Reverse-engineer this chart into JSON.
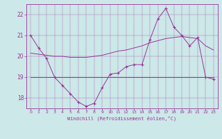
{
  "xlabel": "Windchill (Refroidissement éolien,°C)",
  "background_color": "#cce8e8",
  "line_color": "#993399",
  "ylim": [
    17.5,
    22.5
  ],
  "xlim": [
    -0.5,
    23.5
  ],
  "yticks": [
    18,
    19,
    20,
    21,
    22
  ],
  "xticks": [
    0,
    1,
    2,
    3,
    4,
    5,
    6,
    7,
    8,
    9,
    10,
    11,
    12,
    13,
    14,
    15,
    16,
    17,
    18,
    19,
    20,
    21,
    22,
    23
  ],
  "series1_x": [
    0,
    1,
    2,
    3,
    4,
    5,
    6,
    7,
    8,
    9,
    10,
    11,
    12,
    13,
    14,
    15,
    16,
    17,
    18,
    19,
    20,
    21,
    22,
    23
  ],
  "series1_y": [
    21.0,
    20.4,
    19.9,
    19.0,
    18.6,
    18.2,
    17.8,
    17.6,
    17.75,
    18.5,
    19.15,
    19.2,
    19.5,
    19.6,
    19.6,
    20.8,
    21.8,
    22.3,
    21.4,
    21.0,
    20.5,
    20.9,
    19.0,
    18.9
  ],
  "series2_x": [
    0,
    1,
    2,
    3,
    4,
    5,
    6,
    7,
    8,
    9,
    10,
    11,
    12,
    13,
    14,
    15,
    16,
    17,
    18,
    19,
    20,
    21,
    22,
    23
  ],
  "series2_y": [
    19.0,
    19.0,
    19.0,
    19.0,
    19.0,
    19.0,
    19.0,
    19.0,
    19.0,
    19.0,
    19.0,
    19.0,
    19.0,
    19.0,
    19.0,
    19.0,
    19.0,
    19.0,
    19.0,
    19.0,
    19.0,
    19.0,
    19.0,
    19.0
  ],
  "series3_x": [
    0,
    1,
    2,
    3,
    4,
    5,
    6,
    7,
    8,
    9,
    10,
    11,
    12,
    13,
    14,
    15,
    16,
    17,
    18,
    19,
    20,
    21,
    22,
    23
  ],
  "series3_y": [
    20.15,
    20.1,
    20.05,
    20.0,
    20.0,
    19.95,
    19.95,
    19.95,
    20.0,
    20.05,
    20.15,
    20.25,
    20.3,
    20.4,
    20.5,
    20.65,
    20.75,
    20.85,
    20.9,
    20.95,
    20.9,
    20.85,
    20.5,
    20.3
  ]
}
